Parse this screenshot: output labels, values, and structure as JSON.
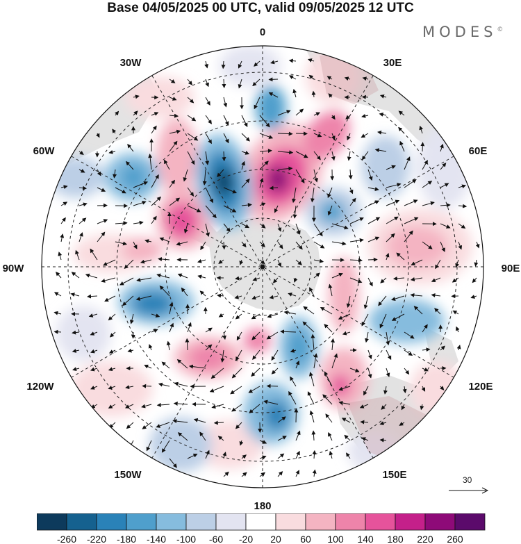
{
  "title": "Base 04/05/2025 00 UTC, valid 09/05/2025 12 UTC",
  "brand": "MODES",
  "brand_mark": "©",
  "longitude_labels": {
    "lon_0": "0",
    "lon_30e": "30E",
    "lon_60e": "60E",
    "lon_90e": "90E",
    "lon_120e": "120E",
    "lon_150e": "150E",
    "lon_180": "180",
    "lon_150w": "150W",
    "lon_120w": "120W",
    "lon_90w": "90W",
    "lon_60w": "60W",
    "lon_30w": "30W"
  },
  "vector_scale": {
    "value": "30"
  },
  "colorbar": {
    "labels": [
      "-260",
      "-220",
      "-180",
      "-140",
      "-100",
      "-60",
      "-20",
      "20",
      "60",
      "100",
      "140",
      "180",
      "220",
      "260"
    ],
    "colors": [
      "#0d3a5c",
      "#15618f",
      "#2a82b8",
      "#4f9fcc",
      "#86bcde",
      "#bccfe6",
      "#e3e4f1",
      "#ffffff",
      "#f9dcdf",
      "#f4b4c2",
      "#ee84aa",
      "#e6539b",
      "#c4208a",
      "#8e0a78",
      "#5b0a6b"
    ]
  },
  "palette": {
    "land": "#d8d8d8",
    "land_red": "#d9b2b6",
    "grid": "#222222",
    "arrow": "#111111"
  }
}
